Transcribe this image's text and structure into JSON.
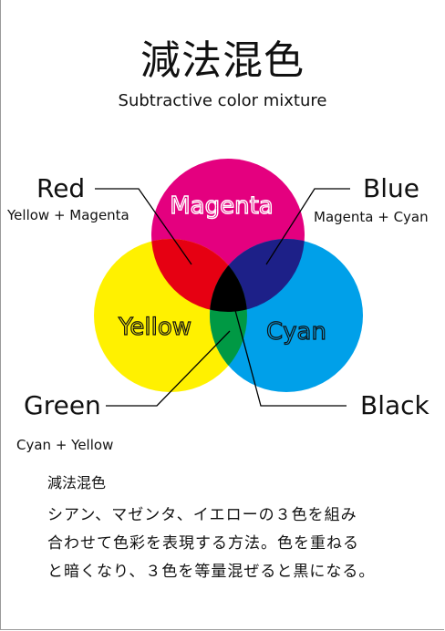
{
  "title": "減法混色",
  "subtitle": "Subtractive color mixture",
  "colors": {
    "magenta": "#e4007f",
    "yellow": "#fff100",
    "cyan": "#00a0e9",
    "red": "#e60012",
    "blue": "#1d2088",
    "green": "#009944",
    "black": "#000000"
  },
  "circles": {
    "magenta": "Magenta",
    "yellow": "Yellow",
    "cyan": "Cyan"
  },
  "callouts": {
    "red": {
      "name": "Red",
      "mix": "Yellow + Magenta"
    },
    "blue": {
      "name": "Blue",
      "mix": "Magenta + Cyan"
    },
    "green": {
      "name": "Green",
      "mix": "Cyan + Yellow"
    },
    "black": {
      "name": "Black"
    }
  },
  "description": {
    "heading": "減法混色",
    "lines": [
      "シアン、マゼンタ、イエローの３色を組み",
      "合わせて色彩を表現する方法。色を重ねる",
      "と暗くなり、３色を等量混ぜると黒になる。"
    ]
  }
}
